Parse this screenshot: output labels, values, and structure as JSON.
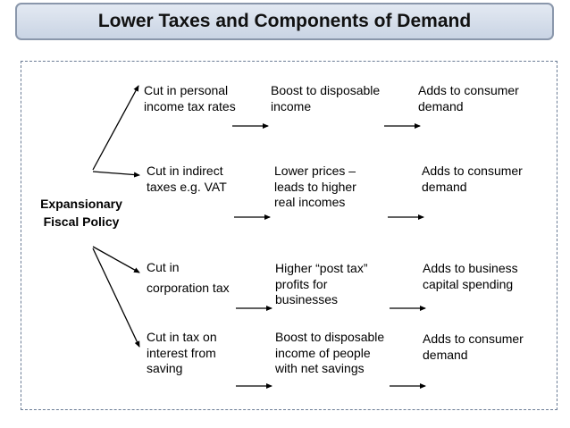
{
  "title": "Lower Taxes and Components of Demand",
  "root": "Expansionary\nFiscal Policy",
  "rows": [
    {
      "cause": "Cut in personal\nincome tax rates",
      "effect": "Boost to disposable\nincome",
      "outcome": "Adds to consumer\ndemand"
    },
    {
      "cause": "Cut in indirect\ntaxes e.g. VAT",
      "effect": "Lower prices –\nleads to higher\nreal incomes",
      "outcome": "Adds to consumer\ndemand"
    },
    {
      "cause": "Cut in\ncorporation tax",
      "effect": "Higher “post tax”\nprofits for\nbusinesses",
      "outcome": "Adds to business\ncapital spending"
    },
    {
      "cause": "Cut in tax on\ninterest from\nsaving",
      "effect": "Boost to disposable\nincome of people\nwith net savings",
      "outcome": "Adds to consumer\ndemand"
    }
  ]
}
